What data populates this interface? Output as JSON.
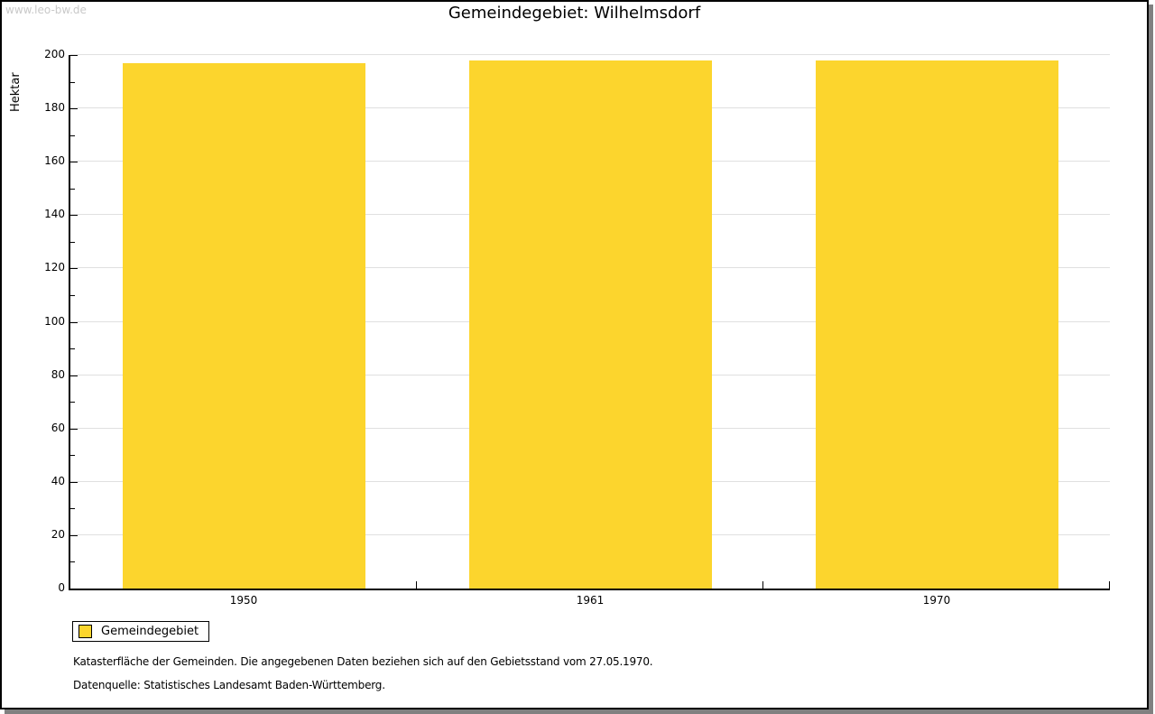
{
  "watermark": "www.leo-bw.de",
  "title": "Gemeindegebiet: Wilhelmsdorf",
  "chart_data": {
    "type": "bar",
    "title": "Gemeindegebiet: Wilhelmsdorf",
    "categories": [
      "1950",
      "1961",
      "1970"
    ],
    "values": [
      197,
      198,
      198
    ],
    "series": [
      {
        "name": "Gemeindegebiet",
        "values": [
          197,
          198,
          198
        ]
      }
    ],
    "xlabel": "",
    "ylabel": "Hektar",
    "ylim": [
      0,
      200
    ],
    "ytick_step": 20,
    "yminor_step": 10,
    "grid": true,
    "grid_color": "#E0E0E0",
    "bar_color": "#FCD52D",
    "legend_position": "bottom-left"
  },
  "legend": {
    "items": [
      {
        "label": "Gemeindegebiet",
        "color": "#FCD52D"
      }
    ]
  },
  "footnotes": [
    "Katasterfläche der Gemeinden. Die angegebenen Daten beziehen sich auf den Gebietsstand vom 27.05.1970.",
    "Datenquelle: Statistisches Landesamt Baden-Württemberg."
  ]
}
